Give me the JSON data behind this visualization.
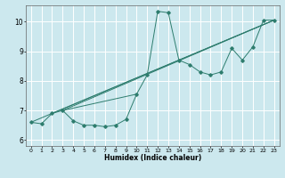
{
  "title": "",
  "xlabel": "Humidex (Indice chaleur)",
  "ylabel": "",
  "xlim": [
    -0.5,
    23.5
  ],
  "ylim": [
    5.8,
    10.55
  ],
  "xticks": [
    0,
    1,
    2,
    3,
    4,
    5,
    6,
    7,
    8,
    9,
    10,
    11,
    12,
    13,
    14,
    15,
    16,
    17,
    18,
    19,
    20,
    21,
    22,
    23
  ],
  "yticks": [
    6,
    7,
    8,
    9,
    10
  ],
  "bg_color": "#cce8ee",
  "line_color": "#2e7d6e",
  "grid_color": "#ffffff",
  "lines": [
    {
      "x": [
        0,
        1,
        2,
        3,
        4,
        5,
        6,
        7,
        8,
        9,
        10,
        11,
        12,
        13,
        14,
        15,
        16,
        17,
        18,
        19,
        20,
        21,
        22,
        23
      ],
      "y": [
        6.6,
        6.55,
        6.9,
        7.0,
        6.65,
        6.5,
        6.5,
        6.45,
        6.5,
        6.7,
        7.55,
        8.2,
        10.35,
        10.3,
        8.7,
        8.55,
        8.3,
        8.2,
        8.3,
        9.1,
        8.7,
        9.15,
        10.05,
        10.05
      ],
      "markers": true
    },
    {
      "x": [
        0,
        23
      ],
      "y": [
        6.6,
        10.05
      ],
      "markers": false
    },
    {
      "x": [
        2,
        23
      ],
      "y": [
        6.9,
        10.05
      ],
      "markers": false
    },
    {
      "x": [
        3,
        23
      ],
      "y": [
        7.0,
        10.05
      ],
      "markers": false
    },
    {
      "x": [
        3,
        10
      ],
      "y": [
        7.0,
        7.55
      ],
      "markers": false
    }
  ]
}
